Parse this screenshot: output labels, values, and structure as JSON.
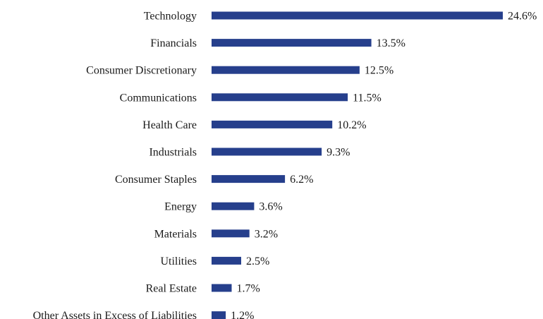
{
  "chart_data": {
    "type": "bar",
    "orientation": "horizontal",
    "categories": [
      "Technology",
      "Financials",
      "Consumer Discretionary",
      "Communications",
      "Health Care",
      "Industrials",
      "Consumer Staples",
      "Energy",
      "Materials",
      "Utilities",
      "Real Estate",
      "Other Assets in Excess of Liabilities"
    ],
    "values": [
      24.6,
      13.5,
      12.5,
      11.5,
      10.2,
      9.3,
      6.2,
      3.6,
      3.2,
      2.5,
      1.7,
      1.2
    ],
    "value_labels": [
      "24.6%",
      "13.5%",
      "12.5%",
      "11.5%",
      "10.2%",
      "9.3%",
      "6.2%",
      "3.6%",
      "3.2%",
      "2.5%",
      "1.7%",
      "1.2%"
    ],
    "xlim": [
      0,
      24.6
    ],
    "grid": false,
    "bar_color": "#263f8c"
  }
}
